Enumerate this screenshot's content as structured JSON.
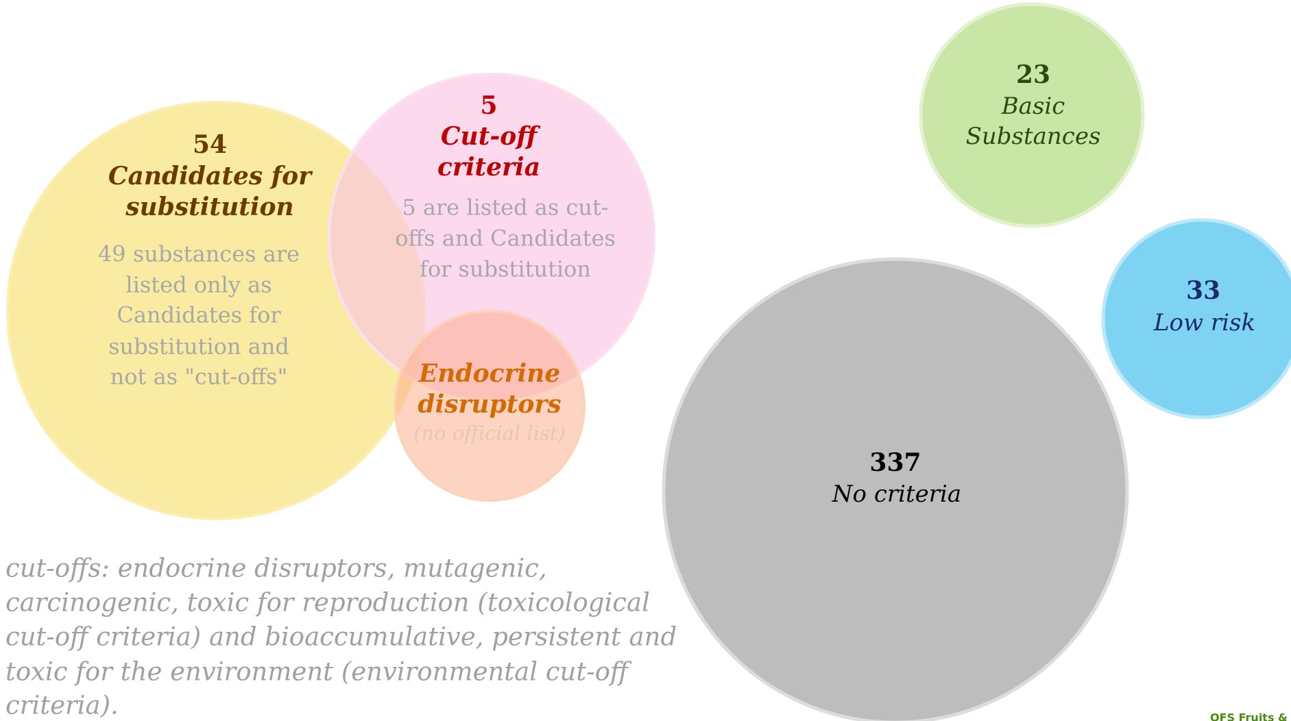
{
  "circles": [
    {
      "number": "54",
      "title": [
        "Candidates for",
        "substitution"
      ],
      "description": [
        "49 substances are",
        "listed only as",
        "Candidates for",
        "substitution and",
        "not as \"cut-offs\""
      ]
    },
    {
      "number": "5",
      "title": [
        "Cut-off",
        "criteria"
      ],
      "description": [
        "5 are listed as cut-",
        "offs and Candidates",
        "for substitution"
      ]
    },
    {
      "title": [
        "Endocrine",
        "disruptors"
      ],
      "note": "(no official list)"
    },
    {
      "number": "23",
      "title": [
        "Basic",
        "Substances"
      ]
    },
    {
      "number": "33",
      "title": [
        "Low risk"
      ]
    },
    {
      "number": "337",
      "title": [
        "No criteria"
      ]
    }
  ],
  "footnote": [
    "cut-offs: endocrine disruptors, mutagenic,",
    "carcinogenic, toxic for reproduction (toxicological",
    "cut-off criteria) and bioaccumulative, persistent and",
    "toxic for the environment (environmental cut-off",
    "criteria)."
  ],
  "corner_text": "OFS Fruits &"
}
